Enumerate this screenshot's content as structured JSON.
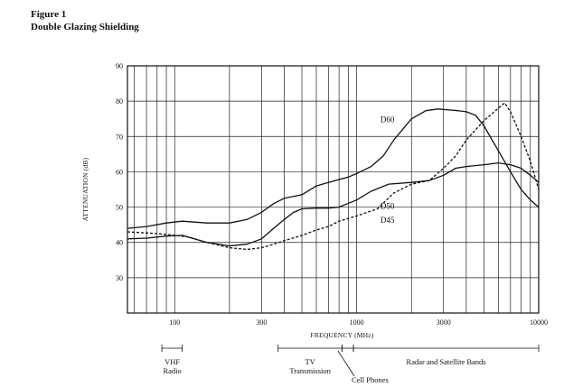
{
  "figure": {
    "label": "Figure 1",
    "title": "Double Glazing Shielding"
  },
  "chart_data": {
    "type": "line",
    "xlabel": "FREQUENCY (MHz)",
    "ylabel": "ATTENUATION (dB)",
    "x_scale": "log",
    "xlim": [
      55,
      10000
    ],
    "ylim": [
      20,
      90
    ],
    "grid": true,
    "x_ticks": [
      {
        "value": 100,
        "label": "100"
      },
      {
        "value": 300,
        "label": "300"
      },
      {
        "value": 1000,
        "label": "1000"
      },
      {
        "value": 3000,
        "label": "3000"
      },
      {
        "value": 10000,
        "label": "10000"
      }
    ],
    "y_ticks": [
      30,
      40,
      50,
      60,
      70,
      80,
      90
    ],
    "x_gridlines": [
      60,
      70,
      80,
      90,
      100,
      200,
      300,
      400,
      500,
      600,
      700,
      800,
      900,
      1000,
      2000,
      3000,
      4000,
      5000,
      6000,
      7000,
      8000,
      9000,
      10000
    ],
    "series": [
      {
        "name": "D60",
        "style": "solid",
        "x": [
          55,
          70,
          90,
          110,
          150,
          200,
          250,
          300,
          350,
          400,
          500,
          600,
          700,
          800,
          900,
          1000,
          1200,
          1400,
          1600,
          2000,
          2400,
          2800,
          3200,
          3600,
          4000,
          4500,
          5000,
          6000,
          7000,
          8000,
          9000,
          10000
        ],
        "y": [
          44,
          44.5,
          45.5,
          46,
          45.5,
          45.5,
          46.5,
          48.5,
          51,
          52.5,
          53.5,
          56,
          57,
          57.8,
          58.5,
          59.5,
          61.5,
          64.5,
          69,
          75,
          77.3,
          77.8,
          77.5,
          77.3,
          77,
          76,
          73,
          66,
          60,
          55,
          52,
          50
        ]
      },
      {
        "name": "D50",
        "style": "solid",
        "x": [
          55,
          70,
          90,
          110,
          150,
          200,
          250,
          300,
          350,
          400,
          450,
          500,
          600,
          700,
          800,
          1000,
          1200,
          1500,
          2000,
          2500,
          3000,
          3500,
          4000,
          5000,
          6000,
          7000,
          8000,
          9000,
          10000
        ],
        "y": [
          41,
          41.2,
          41.8,
          42,
          40,
          39,
          39.5,
          41,
          44,
          46.5,
          48.5,
          49.5,
          49.7,
          49.7,
          50,
          52,
          54.5,
          56.5,
          57,
          57.5,
          59,
          61,
          61.5,
          62,
          62.5,
          62,
          61,
          59,
          57
        ]
      },
      {
        "name": "D45",
        "style": "dashed",
        "x": [
          55,
          80,
          100,
          120,
          150,
          200,
          250,
          300,
          350,
          400,
          500,
          600,
          700,
          800,
          1000,
          1300,
          1600,
          2000,
          2500,
          3000,
          3500,
          4000,
          5000,
          6000,
          6500,
          7000,
          8000,
          9000,
          10000
        ],
        "y": [
          43,
          42.5,
          42,
          41.5,
          40,
          38.5,
          38,
          38.5,
          39.5,
          40.5,
          42,
          43.5,
          44.5,
          46,
          47.5,
          49.5,
          54,
          56.5,
          57.5,
          61,
          64.5,
          69,
          74.5,
          78,
          79.5,
          77,
          70,
          63,
          55
        ]
      }
    ],
    "annotations": [
      {
        "text": "VHF",
        "x_range": [
          85,
          110
        ]
      },
      {
        "text": "Radio",
        "x_range": [
          85,
          110
        ]
      },
      {
        "text": "TV",
        "x_range": [
          370,
          830
        ]
      },
      {
        "text": "Transmission",
        "x_range": [
          370,
          830
        ]
      },
      {
        "text": "Cell Phones",
        "x_range": [
          830,
          960
        ]
      },
      {
        "text": "Radar and Satellite Bands",
        "x_range": [
          960,
          10000
        ]
      }
    ]
  }
}
